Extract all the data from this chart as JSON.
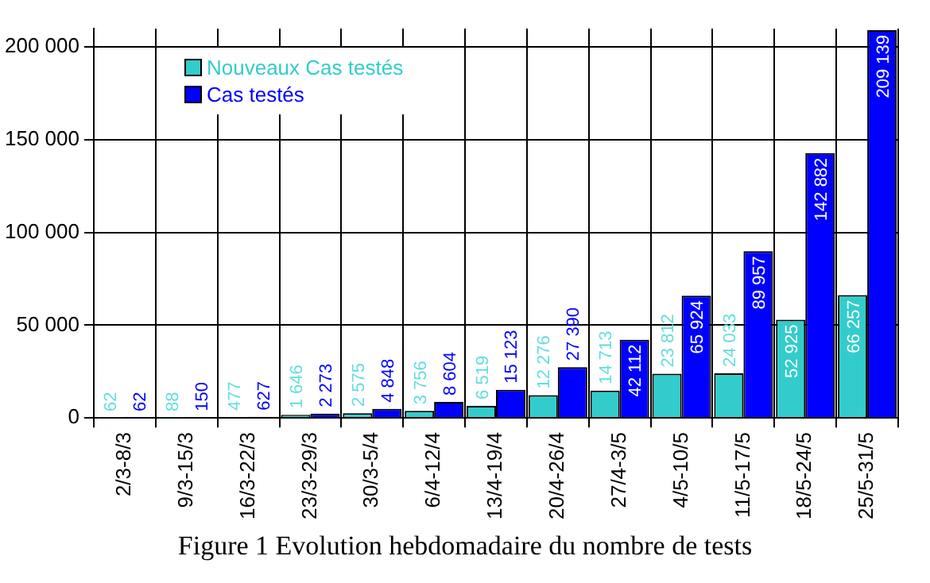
{
  "chart_data": {
    "type": "bar",
    "title": "Figure 1 Evolution hebdomadaire du nombre de tests",
    "categories": [
      "2/3-8/3",
      "9/3-15/3",
      "16/3-22/3",
      "23/3-29/3",
      "30/3-5/4",
      "6/4-12/4",
      "13/4-19/4",
      "20/4-26/4",
      "27/4-3/5",
      "4/5-10/5",
      "11/5-17/5",
      "18/5-24/5",
      "25/5-31/5"
    ],
    "series": [
      {
        "name": "Nouveaux Cas testés",
        "color": "#33cccc",
        "values": [
          62,
          88,
          477,
          1646,
          2575,
          3756,
          6519,
          12276,
          14713,
          23812,
          24033,
          52925,
          66257
        ]
      },
      {
        "name": "Cas testés",
        "color": "#0000ff",
        "values": [
          62,
          150,
          627,
          2273,
          4848,
          8604,
          15123,
          27390,
          42112,
          65924,
          89957,
          142882,
          209139
        ]
      }
    ],
    "ylim": [
      0,
      210000
    ],
    "yticks": [
      0,
      50000,
      100000,
      150000,
      200000
    ],
    "grid": true,
    "legend": "top left",
    "data_labels": true
  }
}
